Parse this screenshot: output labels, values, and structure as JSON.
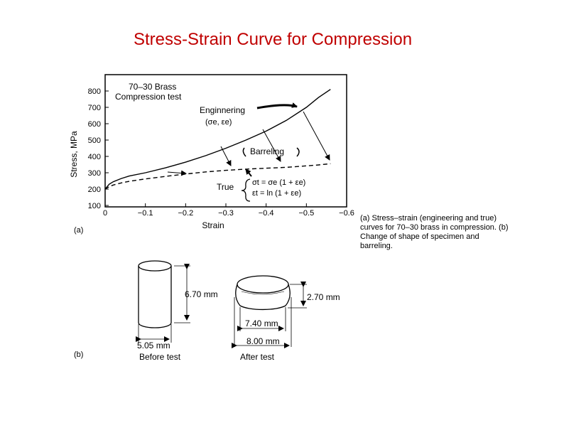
{
  "slide_title": "Stress-Strain Curve for Compression",
  "caption": "(a) Stress–strain (engineering and true) curves for 70–30 brass in compression. (b) Change of shape of specimen and barreling.",
  "chart_data": {
    "type": "line",
    "title": "70–30 Brass Compression test",
    "title_lines": [
      "70–30 Brass",
      "Compression test"
    ],
    "xlabel": "Strain",
    "ylabel": "Stress, MPa",
    "xlim": [
      0,
      -0.6
    ],
    "ylim": [
      100,
      900
    ],
    "xticks": [
      0,
      -0.1,
      -0.2,
      -0.3,
      -0.4,
      -0.5,
      -0.6
    ],
    "xtick_labels": [
      "0",
      "−0.1",
      "−0.2",
      "−0.3",
      "−0.4",
      "−0.5",
      "−0.6"
    ],
    "yticks": [
      100,
      200,
      300,
      400,
      500,
      600,
      700,
      800
    ],
    "grid": false,
    "series": [
      {
        "name": "Enginnering",
        "style": "solid",
        "x": [
          0,
          -0.01,
          -0.02,
          -0.04,
          -0.06,
          -0.1,
          -0.15,
          -0.2,
          -0.25,
          -0.3,
          -0.35,
          -0.4,
          -0.45,
          -0.5,
          -0.53,
          -0.56
        ],
        "y": [
          200,
          230,
          245,
          265,
          280,
          300,
          330,
          365,
          405,
          450,
          500,
          555,
          620,
          700,
          760,
          810
        ]
      },
      {
        "name": "True",
        "style": "dashed",
        "x": [
          0,
          -0.01,
          -0.02,
          -0.04,
          -0.06,
          -0.1,
          -0.15,
          -0.2,
          -0.25,
          -0.3,
          -0.35,
          -0.4,
          -0.45,
          -0.5,
          -0.53,
          -0.56
        ],
        "y": [
          200,
          215,
          225,
          238,
          248,
          262,
          278,
          292,
          305,
          315,
          322,
          328,
          333,
          342,
          348,
          355
        ]
      }
    ],
    "annotations": {
      "engineering_formula": "(σe, εe)",
      "barreling": "Barreling",
      "true_label": "True",
      "true_stress_formula": "σt = σe (1 + εe)",
      "true_strain_formula": "εt = ln (1 + εe)"
    }
  },
  "specimens": {
    "before": {
      "height": "6.70 mm",
      "diameter": "5.05 mm",
      "label": "Before test"
    },
    "after": {
      "height": "2.70 mm",
      "diameter_inner": "7.40 mm",
      "diameter_outer": "8.00 mm",
      "label": "After test"
    }
  },
  "panel_labels": {
    "a": "(a)",
    "b": "(b)"
  }
}
